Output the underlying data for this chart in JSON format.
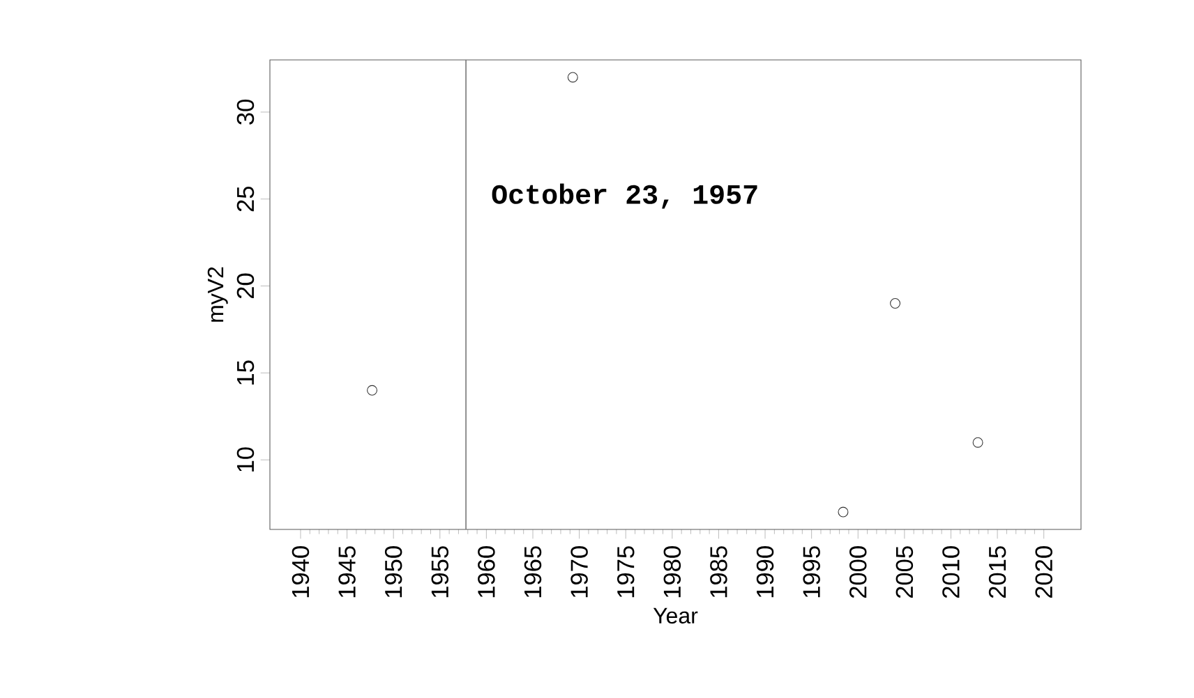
{
  "chart_data": {
    "type": "scatter",
    "xlabel": "Year",
    "ylabel": "myV2",
    "x": [
      1947.7,
      1969.3,
      1998.4,
      2004,
      2012.9
    ],
    "values": [
      14,
      32,
      7,
      19,
      11
    ],
    "color": "#333333",
    "marker": "circle",
    "xlim": [
      1936.7,
      2024
    ],
    "xticks": [
      1940,
      1945,
      1950,
      1955,
      1960,
      1965,
      1970,
      1975,
      1980,
      1985,
      1990,
      1995,
      2000,
      2005,
      2010,
      2015,
      2020
    ],
    "ylim": [
      6,
      33
    ],
    "yticks": [
      10,
      15,
      20,
      25,
      30
    ],
    "ref_lines": [
      {
        "axis": "x",
        "value": 1957.8,
        "label": "October 23, 1957",
        "color": "#777777"
      }
    ],
    "line_style": "solid"
  }
}
